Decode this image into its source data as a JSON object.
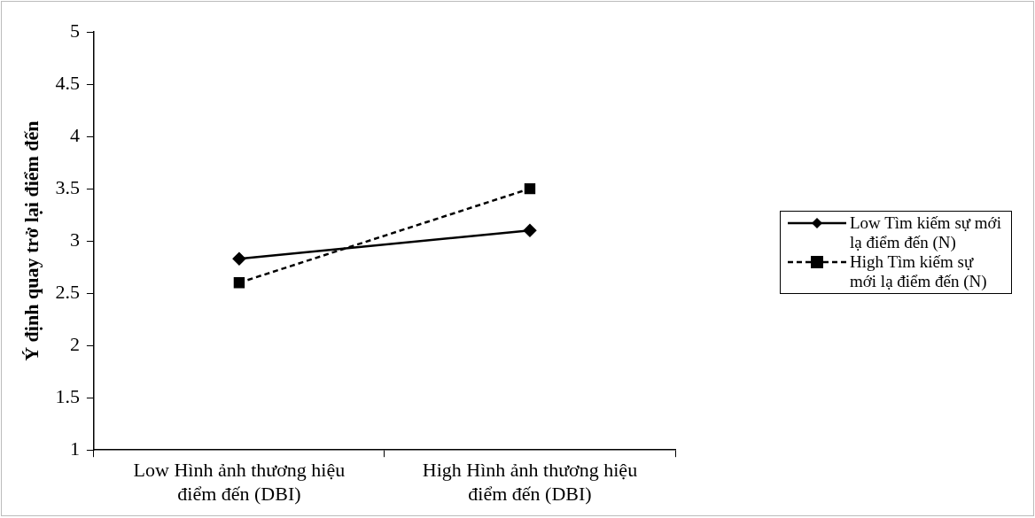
{
  "chart_data": {
    "type": "line",
    "ylabel": "Ý định quay trở lại điểm đến",
    "categories": [
      "Low Hình ảnh thương hiệu điểm đến (DBI)",
      "High Hình ảnh thương hiệu điểm đến (DBI)"
    ],
    "series": [
      {
        "name": "Low Tìm kiếm sự mới lạ điểm đến (N)",
        "color": "#000000",
        "values": [
          2.83,
          3.1
        ],
        "marker": "diamond",
        "line_style": "solid"
      },
      {
        "name": "High Tìm kiếm sự mới lạ điểm đến (N)",
        "color": "#000000",
        "values": [
          2.6,
          3.5
        ],
        "marker": "square",
        "line_style": "dashed"
      }
    ],
    "ylim": [
      1,
      5
    ],
    "yticks": [
      1,
      1.5,
      2,
      2.5,
      3,
      3.5,
      4,
      4.5,
      5
    ],
    "grid": false,
    "legend": "right"
  }
}
